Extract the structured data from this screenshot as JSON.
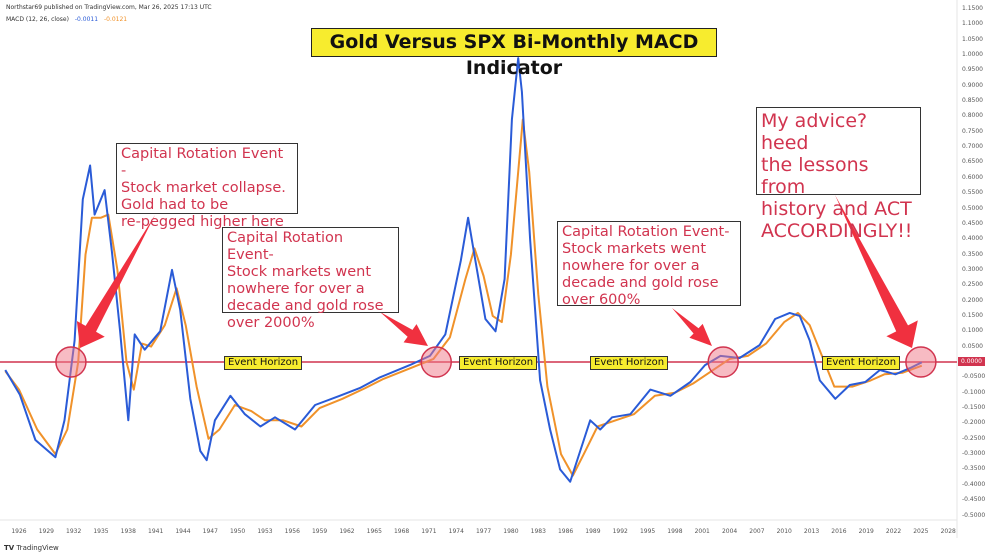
{
  "header": {
    "published": "Northstar69 published on TradingView.com, Mar 26, 2025 17:13 UTC",
    "indicator": "MACD (12, 26, close)",
    "macd_value": "-0.0011",
    "signal_value": "-0.0121"
  },
  "footer": {
    "brand": "TradingView"
  },
  "colors": {
    "macd": "#2a5bd7",
    "signal": "#f0922a",
    "zero_line": "#d1344f",
    "annotation_text": "#d1344f",
    "arrow": "#f0303f",
    "title_bg": "#f7ec2e"
  },
  "annotations": {
    "title": "Gold Versus SPX Bi-Monthly MACD Indicator",
    "note1": "Capital Rotation Event -\nStock market collapse.\nGold had to be\nre-pegged higher here",
    "note2": "Capital Rotation Event-\nStock markets went\nnowhere for over a\ndecade and gold rose\nover 2000%",
    "note3": "Capital Rotation Event-\nStock markets went\nnowhere for over a\ndecade and gold rose\nover 600%",
    "note4": "My advice? heed\nthe lessons from\nhistory and ACT\nACCORDINGLY!!",
    "event_horizon": [
      "Event Horizon",
      "Event Horizon",
      "Event Horizon",
      "Event Horizon"
    ],
    "zero_badge": "0.0000"
  },
  "chart_data": {
    "type": "line",
    "title": "Gold Versus SPX Bi-Monthly MACD Indicator",
    "xlim": [
      1924.4,
      2030.5
    ],
    "ylim": [
      -0.52,
      1.18
    ],
    "x_ticks": [
      "1926",
      "1929",
      "1932",
      "1935",
      "1938",
      "1941",
      "1944",
      "1947",
      "1950",
      "1953",
      "1956",
      "1959",
      "1962",
      "1965",
      "1968",
      "1971",
      "1974",
      "1977",
      "1980",
      "1983",
      "1986",
      "1989",
      "1992",
      "1995",
      "1998",
      "2001",
      "2004",
      "2007",
      "2010",
      "2013",
      "2016",
      "2019",
      "2022",
      "2025",
      "2028"
    ],
    "y_ticks": [
      "1.1500",
      "1.1000",
      "1.0500",
      "1.0000",
      "0.9500",
      "0.9000",
      "0.8500",
      "0.8000",
      "0.7500",
      "0.7000",
      "0.6500",
      "0.6000",
      "0.5500",
      "0.5000",
      "0.4500",
      "0.4000",
      "0.3500",
      "0.3000",
      "0.2500",
      "0.2000",
      "0.1500",
      "0.1000",
      "0.0500",
      "0.0000",
      "-0.0500",
      "-0.1000",
      "-0.1500",
      "-0.2000",
      "-0.2500",
      "-0.3000",
      "-0.3500",
      "-0.4000",
      "-0.4500",
      "-0.5000"
    ],
    "hline": 0,
    "event_years": [
      1931.7,
      1971.8,
      2003.3,
      2025
    ],
    "series": [
      {
        "id": "macd",
        "points": [
          [
            1924.5,
            -0.026
          ],
          [
            1926.1,
            -0.107
          ],
          [
            1927.8,
            -0.254
          ],
          [
            1930,
            -0.31
          ],
          [
            1931,
            -0.19
          ],
          [
            1932.1,
            0.07
          ],
          [
            1933,
            0.53
          ],
          [
            1933.8,
            0.64
          ],
          [
            1934.3,
            0.48
          ],
          [
            1935.4,
            0.56
          ],
          [
            1936.2,
            0.36
          ],
          [
            1937.1,
            0.1
          ],
          [
            1938,
            -0.19
          ],
          [
            1938.7,
            0.09
          ],
          [
            1939.8,
            0.04
          ],
          [
            1941.5,
            0.1
          ],
          [
            1942.8,
            0.3
          ],
          [
            1943.7,
            0.17
          ],
          [
            1944.8,
            -0.12
          ],
          [
            1945.9,
            -0.29
          ],
          [
            1946.6,
            -0.32
          ],
          [
            1947.5,
            -0.19
          ],
          [
            1949.2,
            -0.11
          ],
          [
            1950.8,
            -0.17
          ],
          [
            1952.5,
            -0.21
          ],
          [
            1954.1,
            -0.18
          ],
          [
            1956.3,
            -0.22
          ],
          [
            1958.5,
            -0.14
          ],
          [
            1961.2,
            -0.11
          ],
          [
            1963.4,
            -0.085
          ],
          [
            1965.6,
            -0.05
          ],
          [
            1968.9,
            -0.01
          ],
          [
            1971.1,
            0.02
          ],
          [
            1972.8,
            0.09
          ],
          [
            1974.5,
            0.33
          ],
          [
            1975.3,
            0.47
          ],
          [
            1976.1,
            0.33
          ],
          [
            1977.2,
            0.14
          ],
          [
            1978.3,
            0.1
          ],
          [
            1979.3,
            0.27
          ],
          [
            1980.1,
            0.79
          ],
          [
            1980.8,
            0.99
          ],
          [
            1981.2,
            0.88
          ],
          [
            1982.1,
            0.4
          ],
          [
            1983.2,
            -0.06
          ],
          [
            1984.3,
            -0.22
          ],
          [
            1985.4,
            -0.35
          ],
          [
            1986.5,
            -0.39
          ],
          [
            1987.6,
            -0.29
          ],
          [
            1988.7,
            -0.19
          ],
          [
            1989.8,
            -0.22
          ],
          [
            1991.1,
            -0.18
          ],
          [
            1993.1,
            -0.17
          ],
          [
            1995.3,
            -0.09
          ],
          [
            1997.5,
            -0.11
          ],
          [
            1999.7,
            -0.065
          ],
          [
            2001.3,
            -0.01
          ],
          [
            2003,
            0.02
          ],
          [
            2005.1,
            0.013
          ],
          [
            2007.3,
            0.055
          ],
          [
            2009,
            0.14
          ],
          [
            2010.6,
            0.16
          ],
          [
            2011.7,
            0.15
          ],
          [
            2012.8,
            0.07
          ],
          [
            2013.9,
            -0.06
          ],
          [
            2015.6,
            -0.12
          ],
          [
            2017.2,
            -0.075
          ],
          [
            2018.9,
            -0.065
          ],
          [
            2020.5,
            -0.026
          ],
          [
            2022.2,
            -0.04
          ],
          [
            2023.8,
            -0.02
          ],
          [
            2025.1,
            -0.001
          ]
        ]
      },
      {
        "id": "signal",
        "points": [
          [
            1924.5,
            -0.03
          ],
          [
            1926,
            -0.09
          ],
          [
            1928,
            -0.22
          ],
          [
            1930,
            -0.3
          ],
          [
            1931.3,
            -0.22
          ],
          [
            1932.5,
            0
          ],
          [
            1933.3,
            0.35
          ],
          [
            1934,
            0.47
          ],
          [
            1935,
            0.47
          ],
          [
            1935.8,
            0.48
          ],
          [
            1936.8,
            0.3
          ],
          [
            1937.8,
            0
          ],
          [
            1938.6,
            -0.09
          ],
          [
            1939.5,
            0.06
          ],
          [
            1940.5,
            0.05
          ],
          [
            1942,
            0.12
          ],
          [
            1943.3,
            0.24
          ],
          [
            1944.3,
            0.12
          ],
          [
            1945.5,
            -0.08
          ],
          [
            1946.8,
            -0.25
          ],
          [
            1948,
            -0.22
          ],
          [
            1949.7,
            -0.14
          ],
          [
            1951.5,
            -0.16
          ],
          [
            1953,
            -0.19
          ],
          [
            1955,
            -0.19
          ],
          [
            1957,
            -0.21
          ],
          [
            1959,
            -0.15
          ],
          [
            1961.5,
            -0.12
          ],
          [
            1964,
            -0.085
          ],
          [
            1966,
            -0.055
          ],
          [
            1969,
            -0.02
          ],
          [
            1971.5,
            0.01
          ],
          [
            1973.3,
            0.08
          ],
          [
            1975,
            0.27
          ],
          [
            1976,
            0.37
          ],
          [
            1977,
            0.28
          ],
          [
            1978,
            0.15
          ],
          [
            1979,
            0.13
          ],
          [
            1980,
            0.35
          ],
          [
            1981.3,
            0.79
          ],
          [
            1982,
            0.62
          ],
          [
            1983,
            0.22
          ],
          [
            1984,
            -0.08
          ],
          [
            1985.5,
            -0.3
          ],
          [
            1986.8,
            -0.37
          ],
          [
            1988,
            -0.3
          ],
          [
            1989.5,
            -0.21
          ],
          [
            1991.5,
            -0.19
          ],
          [
            1993.5,
            -0.17
          ],
          [
            1995.8,
            -0.11
          ],
          [
            1998,
            -0.1
          ],
          [
            2000,
            -0.07
          ],
          [
            2002,
            -0.03
          ],
          [
            2004,
            0.01
          ],
          [
            2006,
            0.02
          ],
          [
            2008,
            0.06
          ],
          [
            2010,
            0.13
          ],
          [
            2011.5,
            0.16
          ],
          [
            2012.8,
            0.12
          ],
          [
            2014,
            0.03
          ],
          [
            2015.5,
            -0.08
          ],
          [
            2017.5,
            -0.08
          ],
          [
            2019.5,
            -0.06
          ],
          [
            2021,
            -0.04
          ],
          [
            2023,
            -0.035
          ],
          [
            2025.1,
            -0.012
          ]
        ]
      }
    ]
  }
}
